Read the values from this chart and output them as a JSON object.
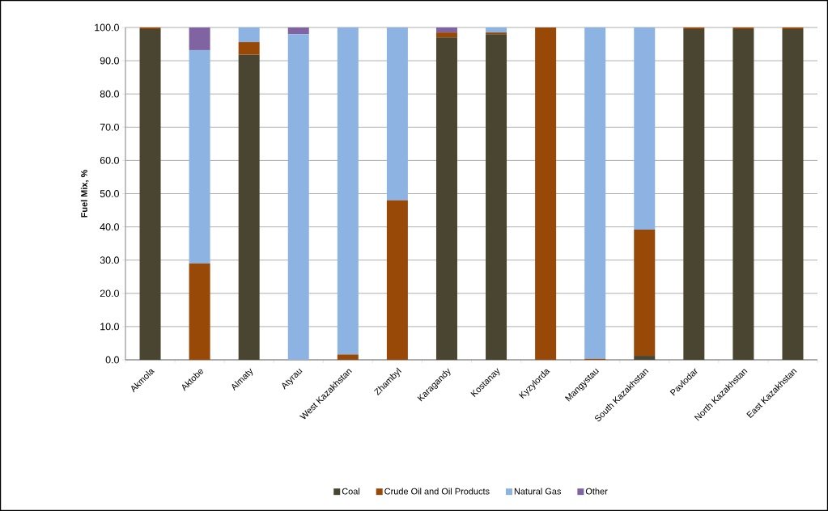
{
  "chart_data": {
    "type": "bar",
    "stacked": true,
    "ylabel": "Fuel Mix, %",
    "categories": [
      "Akmola",
      "Aktobe",
      "Almaty",
      "Atyrau",
      "West Kazakhstan",
      "Zhambyl",
      "Karagandy",
      "Kostanay",
      "Kyzylorda",
      "Mangystau",
      "South Kazakhstan",
      "Pavlodar",
      "North Kazakhstan",
      "East Kazakhstan"
    ],
    "series": [
      {
        "name": "Coal",
        "color": "#4a4530",
        "values": [
          99.5,
          0,
          91.8,
          0,
          0,
          0,
          97.0,
          98.0,
          0,
          0,
          1.2,
          99.5,
          99.5,
          99.5
        ]
      },
      {
        "name": "Crude Oil and Oil Products",
        "color": "#984807",
        "values": [
          0.5,
          29.0,
          3.8,
          0,
          1.6,
          48.0,
          1.5,
          0.5,
          100.0,
          0.3,
          38.0,
          0.5,
          0.5,
          0.5
        ]
      },
      {
        "name": "Natural Gas",
        "color": "#8db3e2",
        "values": [
          0,
          64.2,
          4.4,
          98.0,
          98.4,
          52.0,
          0,
          1.5,
          0,
          99.7,
          60.8,
          0,
          0,
          0
        ]
      },
      {
        "name": "Other",
        "color": "#8064a2",
        "values": [
          0,
          6.8,
          0,
          2.0,
          0,
          0,
          1.5,
          0,
          0,
          0,
          0,
          0,
          0,
          0
        ]
      }
    ],
    "ylim": [
      0,
      100
    ],
    "yticks": [
      {
        "value": 0,
        "label": "0.0"
      },
      {
        "value": 10,
        "label": "10.0"
      },
      {
        "value": 20,
        "label": "20.0"
      },
      {
        "value": 30,
        "label": "30.0"
      },
      {
        "value": 40,
        "label": "40.0"
      },
      {
        "value": 50,
        "label": "50.0"
      },
      {
        "value": 60,
        "label": "60.0"
      },
      {
        "value": 70,
        "label": "70.0"
      },
      {
        "value": 80,
        "label": "80.0"
      },
      {
        "value": 90,
        "label": "90.0"
      },
      {
        "value": 100,
        "label": "100.0"
      }
    ],
    "grid": "y",
    "legend": "bottom"
  }
}
